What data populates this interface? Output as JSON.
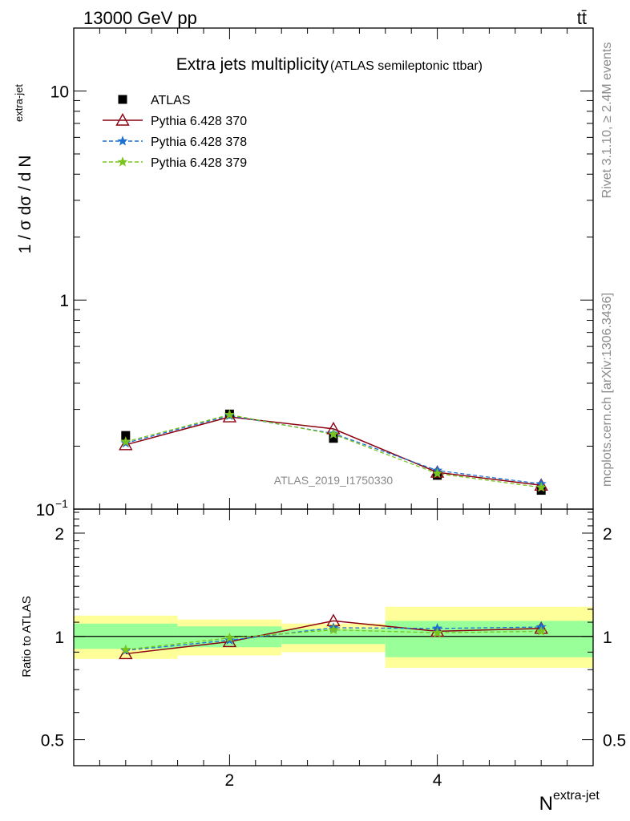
{
  "header": {
    "left": "13000 GeV pp",
    "right": "tt̄"
  },
  "side_text": {
    "rivet": "Rivet 3.1.10, ≥ 2.4M events",
    "mcplots": "mcplots.cern.ch [arXiv:1306.3436]"
  },
  "chart_data": [
    {
      "type": "line",
      "panel": "main",
      "title": "Extra jets multiplicity",
      "subtitle": "(ATLAS semileptonic ttbar)",
      "watermark": "ATLAS_2019_I1750330",
      "ylabel": "1 / σ dσ / d N",
      "ylabel_sup": "extra-jet",
      "yscale": "log",
      "ylim": [
        0.1,
        20
      ],
      "xlim": [
        0.5,
        5.5
      ],
      "y_tick_labels": [
        "10",
        "1",
        "10"
      ],
      "y_tick_sup": "−1",
      "x": [
        1,
        2,
        3,
        4,
        5
      ],
      "legend_position": "top-left",
      "series": [
        {
          "name": "ATLAS",
          "marker": "square",
          "color": "#000000",
          "values": [
            0.225,
            0.285,
            0.218,
            0.145,
            0.123
          ]
        },
        {
          "name": "Pythia 6.428 370",
          "marker": "triangle-open",
          "line": "solid",
          "color": "#8b0010",
          "values": [
            0.203,
            0.276,
            0.242,
            0.15,
            0.13
          ]
        },
        {
          "name": "Pythia 6.428 378",
          "marker": "star",
          "line": "dashed",
          "color": "#1a6fd1",
          "values": [
            0.207,
            0.28,
            0.23,
            0.153,
            0.132
          ]
        },
        {
          "name": "Pythia 6.428 379",
          "marker": "star",
          "line": "dashed",
          "color": "#7ac41e",
          "values": [
            0.21,
            0.283,
            0.228,
            0.148,
            0.127
          ]
        }
      ]
    },
    {
      "type": "line",
      "panel": "ratio",
      "ylabel": "Ratio to ATLAS",
      "xlabel": "N",
      "xlabel_sup": "extra-jet",
      "yscale": "log",
      "ylim": [
        0.42,
        2.35
      ],
      "y_ticks": [
        "0.5",
        "1",
        "2"
      ],
      "x_ticks": [
        "2",
        "4"
      ],
      "bands": {
        "bins": [
          [
            0.5,
            1.5
          ],
          [
            1.5,
            2.5
          ],
          [
            2.5,
            3.5
          ],
          [
            3.5,
            5.5
          ]
        ],
        "yellow": [
          [
            0.86,
            1.15
          ],
          [
            0.88,
            1.12
          ],
          [
            0.9,
            1.09
          ],
          [
            0.81,
            1.22
          ]
        ],
        "green": [
          [
            0.92,
            1.09
          ],
          [
            0.93,
            1.07
          ],
          [
            0.95,
            1.05
          ],
          [
            0.87,
            1.11
          ]
        ],
        "yellow_color": "#ffff99",
        "green_color": "#99ff99"
      },
      "x": [
        1,
        2,
        3,
        4,
        5
      ],
      "series": [
        {
          "name": "Pythia 6.428 370",
          "color": "#8b0010",
          "values": [
            0.89,
            0.965,
            1.11,
            1.035,
            1.055
          ]
        },
        {
          "name": "Pythia 6.428 378",
          "color": "#1a6fd1",
          "values": [
            0.91,
            0.975,
            1.06,
            1.055,
            1.065
          ]
        },
        {
          "name": "Pythia 6.428 379",
          "color": "#7ac41e",
          "values": [
            0.915,
            0.99,
            1.045,
            1.025,
            1.035
          ]
        }
      ]
    }
  ]
}
